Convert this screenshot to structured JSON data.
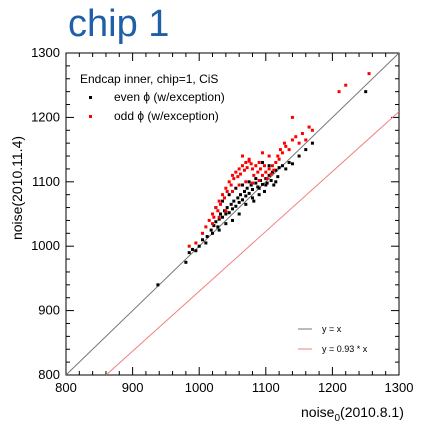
{
  "page_title": "chip 1",
  "chart_data": {
    "type": "scatter",
    "title": "chip 1",
    "xlabel_main": "noise",
    "xlabel_sub": "0",
    "xlabel_tail": "(2010.8.1)",
    "ylabel": "noise(2010.11.4)",
    "xlim": [
      800,
      1300
    ],
    "ylim": [
      800,
      1300
    ],
    "xticks": [
      "800",
      "900",
      "1000",
      "1100",
      "1200",
      "1300"
    ],
    "yticks": [
      "800",
      "900",
      "1000",
      "1100",
      "1200",
      "1300"
    ],
    "legend_title": "Endcap inner, chip=1, CiS",
    "legend_bottom_right": [
      "y = x",
      "y = 0.93 * x"
    ],
    "colors": {
      "even": "#000000",
      "odd": "#ff0000",
      "line_identity": "#777777",
      "line_scaled": "#f08080"
    },
    "lines": [
      {
        "name": "y = x",
        "slope": 1.0
      },
      {
        "name": "y = 0.93 * x",
        "slope": 0.93
      }
    ],
    "series": [
      {
        "name": "even ϕ (w/exception)",
        "color": "#000000",
        "points": [
          [
            980,
            975
          ],
          [
            985,
            990
          ],
          [
            990,
            995
          ],
          [
            995,
            993
          ],
          [
            1000,
            1000
          ],
          [
            1005,
            1010
          ],
          [
            1010,
            1005
          ],
          [
            1012,
            1015
          ],
          [
            1018,
            1025
          ],
          [
            1020,
            1020
          ],
          [
            1022,
            1032
          ],
          [
            1025,
            1038
          ],
          [
            1028,
            1030
          ],
          [
            1030,
            1042
          ],
          [
            1032,
            1050
          ],
          [
            1035,
            1045
          ],
          [
            1038,
            1055
          ],
          [
            1040,
            1050
          ],
          [
            1042,
            1060
          ],
          [
            1045,
            1052
          ],
          [
            1048,
            1065
          ],
          [
            1050,
            1058
          ],
          [
            1052,
            1070
          ],
          [
            1055,
            1062
          ],
          [
            1058,
            1075
          ],
          [
            1060,
            1068
          ],
          [
            1062,
            1080
          ],
          [
            1065,
            1072
          ],
          [
            1068,
            1085
          ],
          [
            1070,
            1078
          ],
          [
            1072,
            1090
          ],
          [
            1075,
            1082
          ],
          [
            1078,
            1095
          ],
          [
            1080,
            1088
          ],
          [
            1082,
            1070
          ],
          [
            1085,
            1098
          ],
          [
            1088,
            1092
          ],
          [
            1090,
            1080
          ],
          [
            1092,
            1102
          ],
          [
            1095,
            1096
          ],
          [
            1098,
            1085
          ],
          [
            1100,
            1105
          ],
          [
            1102,
            1098
          ],
          [
            1105,
            1110
          ],
          [
            1108,
            1102
          ],
          [
            1110,
            1115
          ],
          [
            1112,
            1095
          ],
          [
            1115,
            1118
          ],
          [
            1118,
            1108
          ],
          [
            1120,
            1122
          ],
          [
            1125,
            1125
          ],
          [
            1130,
            1120
          ],
          [
            1135,
            1130
          ],
          [
            1140,
            1128
          ],
          [
            1150,
            1140
          ],
          [
            1160,
            1150
          ],
          [
            1170,
            1160
          ],
          [
            1045,
            1080
          ],
          [
            1055,
            1090
          ],
          [
            1065,
            1095
          ],
          [
            1075,
            1100
          ],
          [
            1085,
            1105
          ],
          [
            1060,
            1050
          ],
          [
            1070,
            1065
          ],
          [
            1080,
            1075
          ],
          [
            1090,
            1090
          ],
          [
            1100,
            1095
          ],
          [
            1040,
            1035
          ],
          [
            1050,
            1040
          ],
          [
            1030,
            1025
          ],
          [
            1095,
            1130
          ],
          [
            1105,
            1125
          ],
          [
            1115,
            1100
          ],
          [
            1250,
            1240
          ],
          [
            938,
            940
          ],
          [
            1025,
            1060
          ],
          [
            1035,
            1070
          ]
        ]
      },
      {
        "name": "odd ϕ (w/exception)",
        "color": "#ff0000",
        "points": [
          [
            985,
            1000
          ],
          [
            995,
            1005
          ],
          [
            1005,
            1020
          ],
          [
            1010,
            1030
          ],
          [
            1015,
            1040
          ],
          [
            1020,
            1050
          ],
          [
            1022,
            1045
          ],
          [
            1025,
            1060
          ],
          [
            1028,
            1055
          ],
          [
            1030,
            1070
          ],
          [
            1032,
            1065
          ],
          [
            1035,
            1080
          ],
          [
            1038,
            1075
          ],
          [
            1040,
            1090
          ],
          [
            1042,
            1085
          ],
          [
            1045,
            1100
          ],
          [
            1048,
            1095
          ],
          [
            1050,
            1110
          ],
          [
            1052,
            1105
          ],
          [
            1055,
            1115
          ],
          [
            1058,
            1108
          ],
          [
            1060,
            1120
          ],
          [
            1062,
            1112
          ],
          [
            1065,
            1125
          ],
          [
            1068,
            1118
          ],
          [
            1070,
            1130
          ],
          [
            1072,
            1122
          ],
          [
            1075,
            1135
          ],
          [
            1078,
            1128
          ],
          [
            1080,
            1120
          ],
          [
            1082,
            1110
          ],
          [
            1085,
            1125
          ],
          [
            1088,
            1115
          ],
          [
            1090,
            1130
          ],
          [
            1092,
            1120
          ],
          [
            1095,
            1110
          ],
          [
            1098,
            1125
          ],
          [
            1100,
            1115
          ],
          [
            1102,
            1105
          ],
          [
            1105,
            1120
          ],
          [
            1108,
            1112
          ],
          [
            1110,
            1125
          ],
          [
            1112,
            1118
          ],
          [
            1115,
            1130
          ],
          [
            1118,
            1140
          ],
          [
            1120,
            1135
          ],
          [
            1122,
            1150
          ],
          [
            1125,
            1145
          ],
          [
            1128,
            1160
          ],
          [
            1130,
            1155
          ],
          [
            1135,
            1150
          ],
          [
            1140,
            1165
          ],
          [
            1145,
            1170
          ],
          [
            1150,
            1160
          ],
          [
            1155,
            1175
          ],
          [
            1160,
            1165
          ],
          [
            1140,
            1200
          ],
          [
            1165,
            1185
          ],
          [
            1170,
            1180
          ],
          [
            1210,
            1240
          ],
          [
            1220,
            1250
          ],
          [
            1255,
            1268
          ],
          [
            1050,
            1085
          ],
          [
            1060,
            1095
          ],
          [
            1070,
            1100
          ],
          [
            1080,
            1098
          ],
          [
            1090,
            1102
          ],
          [
            1040,
            1055
          ],
          [
            1030,
            1045
          ],
          [
            1020,
            1035
          ],
          [
            1065,
            1140
          ],
          [
            1075,
            1132
          ],
          [
            1095,
            1145
          ],
          [
            1105,
            1140
          ]
        ]
      }
    ],
    "grid": false,
    "legend_placement": "top-left"
  }
}
